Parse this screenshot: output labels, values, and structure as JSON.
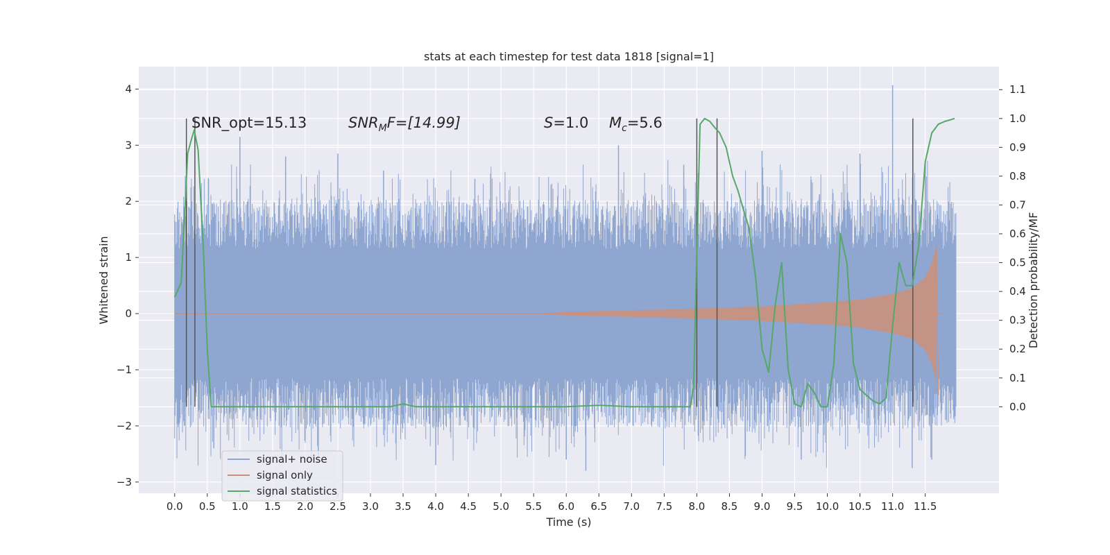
{
  "chart_data": {
    "type": "line",
    "title": "stats at each timestep for test data 1818 [signal=1]",
    "xlabel": "Time (s)",
    "ylabel_left": "Whitened strain",
    "ylabel_right": "Detection probability/MF",
    "xlim": [
      -0.55,
      12.63
    ],
    "ylim_left": [
      -3.2,
      4.4
    ],
    "ylim_right": [
      -0.3,
      1.18
    ],
    "x_ticks": [
      "0.0",
      "0.5",
      "1.0",
      "1.5",
      "2.0",
      "2.5",
      "3.0",
      "3.5",
      "4.0",
      "4.5",
      "5.0",
      "5.5",
      "6.0",
      "6.5",
      "7.0",
      "7.5",
      "8.0",
      "8.5",
      "9.0",
      "9.5",
      "10.0",
      "10.5",
      "11.0",
      "11.5"
    ],
    "y_left_ticks": [
      "−3",
      "−2",
      "−1",
      "0",
      "1",
      "2",
      "3",
      "4"
    ],
    "y_right_ticks": [
      "0.0",
      "0.1",
      "0.2",
      "0.3",
      "0.4",
      "0.5",
      "0.6",
      "0.7",
      "0.8",
      "0.9",
      "1.0",
      "1.1"
    ],
    "grid": true,
    "legend_position": "lower-left",
    "annotations": {
      "snr_opt": "SNR_opt=15.13",
      "snr_mf_main": "SNR",
      "snr_mf_sub": "M",
      "snr_mf_rest": "F=[14.99]",
      "s_var": "S",
      "s_rest": "=1.0",
      "mc_var": "M",
      "mc_sub": "c",
      "mc_rest": "=5.6"
    },
    "detection_marks_s": [
      0.18,
      0.31,
      8.0,
      8.31,
      11.31
    ],
    "series": [
      {
        "name": "signal+ noise",
        "color": "#8fa6d0",
        "axis": "left",
        "note_shape": "dense noise, core band about ±1.15, peaks to about ±2.5",
        "x_range": [
          0.0,
          11.97
        ],
        "band": 1.15,
        "spikes_upper": [
          [
            1.0,
            3.15
          ],
          [
            1.7,
            2.8
          ],
          [
            2.5,
            2.85
          ],
          [
            3.2,
            2.55
          ],
          [
            4.6,
            2.4
          ],
          [
            6.8,
            3.0
          ],
          [
            7.8,
            2.65
          ],
          [
            9.0,
            2.9
          ],
          [
            10.5,
            2.85
          ],
          [
            11.0,
            4.07
          ],
          [
            11.5,
            2.7
          ]
        ],
        "spikes_lower": [
          [
            0.6,
            -2.4
          ],
          [
            2.2,
            -2.6
          ],
          [
            4.0,
            -2.7
          ],
          [
            6.0,
            -2.6
          ],
          [
            6.3,
            -2.8
          ],
          [
            9.6,
            -2.6
          ],
          [
            11.3,
            -2.75
          ],
          [
            11.6,
            -2.6
          ]
        ]
      },
      {
        "name": "signal only",
        "color": "#cc8f78",
        "axis": "left",
        "note_shape": "chirp envelope growing toward merger near 11.7 s",
        "envelope": [
          [
            5.5,
            0.0
          ],
          [
            6.0,
            0.03
          ],
          [
            7.0,
            0.06
          ],
          [
            8.0,
            0.09
          ],
          [
            9.0,
            0.13
          ],
          [
            10.0,
            0.2
          ],
          [
            10.5,
            0.25
          ],
          [
            11.0,
            0.35
          ],
          [
            11.3,
            0.45
          ],
          [
            11.5,
            0.65
          ],
          [
            11.6,
            0.9
          ],
          [
            11.67,
            1.22
          ],
          [
            11.7,
            -1.45
          ],
          [
            11.75,
            0.0
          ]
        ]
      },
      {
        "name": "signal statistics",
        "color": "#55a868",
        "axis": "right",
        "x": [
          0.0,
          0.1,
          0.2,
          0.26,
          0.3,
          0.36,
          0.44,
          0.5,
          0.56,
          1.0,
          2.0,
          3.0,
          3.3,
          3.5,
          3.7,
          4.0,
          4.5,
          5.0,
          6.0,
          6.5,
          7.0,
          7.5,
          7.9,
          7.95,
          8.05,
          8.12,
          8.2,
          8.27,
          8.35,
          8.45,
          8.55,
          8.63,
          8.72,
          8.8,
          8.9,
          9.0,
          9.1,
          9.2,
          9.3,
          9.4,
          9.5,
          9.6,
          9.7,
          9.8,
          9.9,
          10.0,
          10.1,
          10.2,
          10.3,
          10.4,
          10.5,
          10.6,
          10.7,
          10.8,
          10.9,
          11.0,
          11.1,
          11.2,
          11.3,
          11.4,
          11.5,
          11.6,
          11.7,
          11.8,
          11.95
        ],
        "y": [
          0.38,
          0.43,
          0.88,
          0.93,
          0.96,
          0.89,
          0.55,
          0.2,
          0.0,
          0.0,
          0.0,
          0.0,
          0.0,
          0.01,
          0.0,
          0.0,
          0.0,
          0.0,
          0.0,
          0.005,
          0.0,
          0.0,
          0.0,
          0.07,
          0.98,
          1.0,
          0.99,
          0.97,
          0.95,
          0.9,
          0.8,
          0.75,
          0.68,
          0.62,
          0.45,
          0.2,
          0.12,
          0.35,
          0.5,
          0.13,
          0.01,
          0.0,
          0.08,
          0.05,
          0.0,
          0.0,
          0.15,
          0.6,
          0.5,
          0.15,
          0.06,
          0.04,
          0.02,
          0.01,
          0.03,
          0.28,
          0.5,
          0.42,
          0.42,
          0.56,
          0.85,
          0.95,
          0.98,
          0.99,
          1.0
        ]
      }
    ]
  }
}
